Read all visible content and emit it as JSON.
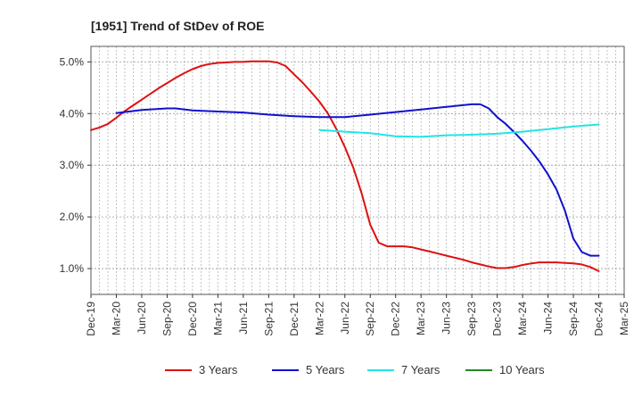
{
  "chart_data": {
    "type": "line",
    "title": "[1951]  Trend of StDev of ROE",
    "x_ticks": [
      "Dec-19",
      "Mar-20",
      "Jun-20",
      "Sep-20",
      "Dec-20",
      "Mar-21",
      "Jun-21",
      "Sep-21",
      "Dec-21",
      "Mar-22",
      "Jun-22",
      "Sep-22",
      "Dec-22",
      "Mar-23",
      "Jun-23",
      "Sep-23",
      "Dec-23",
      "Mar-24",
      "Jun-24",
      "Sep-24",
      "Dec-24",
      "Mar-25"
    ],
    "y_ticks": [
      "1.0%",
      "2.0%",
      "3.0%",
      "4.0%",
      "5.0%"
    ],
    "ylim": [
      0.5,
      5.3
    ],
    "grid": true,
    "legend_position": "bottom",
    "series": [
      {
        "name": "3 Years",
        "color": "#dd1111",
        "x": [
          "Dec-19",
          "Jan-20",
          "Feb-20",
          "Mar-20",
          "Apr-20",
          "May-20",
          "Jun-20",
          "Jul-20",
          "Aug-20",
          "Sep-20",
          "Oct-20",
          "Nov-20",
          "Dec-20",
          "Jan-21",
          "Feb-21",
          "Mar-21",
          "Apr-21",
          "May-21",
          "Jun-21",
          "Jul-21",
          "Aug-21",
          "Sep-21",
          "Oct-21",
          "Nov-21",
          "Dec-21",
          "Jan-22",
          "Feb-22",
          "Mar-22",
          "Apr-22",
          "May-22",
          "Jun-22",
          "Jul-22",
          "Aug-22",
          "Sep-22",
          "Oct-22",
          "Nov-22",
          "Dec-22",
          "Jan-23",
          "Feb-23",
          "Mar-23",
          "Apr-23",
          "May-23",
          "Jun-23",
          "Jul-23",
          "Aug-23",
          "Sep-23",
          "Oct-23",
          "Nov-23",
          "Dec-23",
          "Jan-24",
          "Feb-24",
          "Mar-24",
          "Apr-24",
          "May-24",
          "Jun-24",
          "Jul-24",
          "Aug-24",
          "Sep-24",
          "Oct-24",
          "Nov-24",
          "Dec-24"
        ],
        "values": [
          3.68,
          3.73,
          3.8,
          3.92,
          4.05,
          4.16,
          4.27,
          4.38,
          4.49,
          4.59,
          4.69,
          4.78,
          4.86,
          4.92,
          4.96,
          4.98,
          4.99,
          5.0,
          5.0,
          5.01,
          5.01,
          5.01,
          4.99,
          4.92,
          4.76,
          4.6,
          4.42,
          4.23,
          4.0,
          3.7,
          3.35,
          2.95,
          2.45,
          1.85,
          1.5,
          1.43,
          1.43,
          1.43,
          1.41,
          1.37,
          1.33,
          1.29,
          1.25,
          1.21,
          1.17,
          1.12,
          1.08,
          1.04,
          1.01,
          1.01,
          1.03,
          1.07,
          1.1,
          1.12,
          1.12,
          1.12,
          1.11,
          1.1,
          1.08,
          1.03,
          0.95
        ]
      },
      {
        "name": "5 Years",
        "color": "#1111cc",
        "x": [
          "Mar-20",
          "Jun-20",
          "Sep-20",
          "Oct-20",
          "Dec-20",
          "Mar-21",
          "Jun-21",
          "Sep-21",
          "Dec-21",
          "Mar-22",
          "Jun-22",
          "Sep-22",
          "Dec-22",
          "Mar-23",
          "Jun-23",
          "Sep-23",
          "Oct-23",
          "Nov-23",
          "Dec-23",
          "Jan-24",
          "Feb-24",
          "Mar-24",
          "Apr-24",
          "May-24",
          "Jun-24",
          "Jul-24",
          "Aug-24",
          "Sep-24",
          "Oct-24",
          "Nov-24",
          "Dec-24"
        ],
        "values": [
          4.01,
          4.07,
          4.1,
          4.1,
          4.06,
          4.04,
          4.02,
          3.98,
          3.95,
          3.93,
          3.93,
          3.98,
          4.03,
          4.08,
          4.13,
          4.18,
          4.18,
          4.1,
          3.93,
          3.8,
          3.64,
          3.47,
          3.28,
          3.07,
          2.82,
          2.53,
          2.12,
          1.58,
          1.32,
          1.25,
          1.25
        ]
      },
      {
        "name": "7 Years",
        "color": "#22e5e5",
        "x": [
          "Mar-22",
          "Jun-22",
          "Sep-22",
          "Dec-22",
          "Mar-23",
          "Jun-23",
          "Sep-23",
          "Dec-23",
          "Mar-24",
          "Jun-24",
          "Sep-24",
          "Dec-24"
        ],
        "values": [
          3.68,
          3.65,
          3.62,
          3.56,
          3.55,
          3.58,
          3.59,
          3.61,
          3.65,
          3.7,
          3.75,
          3.79
        ]
      },
      {
        "name": "10 Years",
        "color": "#228822",
        "x": [],
        "values": []
      }
    ]
  }
}
